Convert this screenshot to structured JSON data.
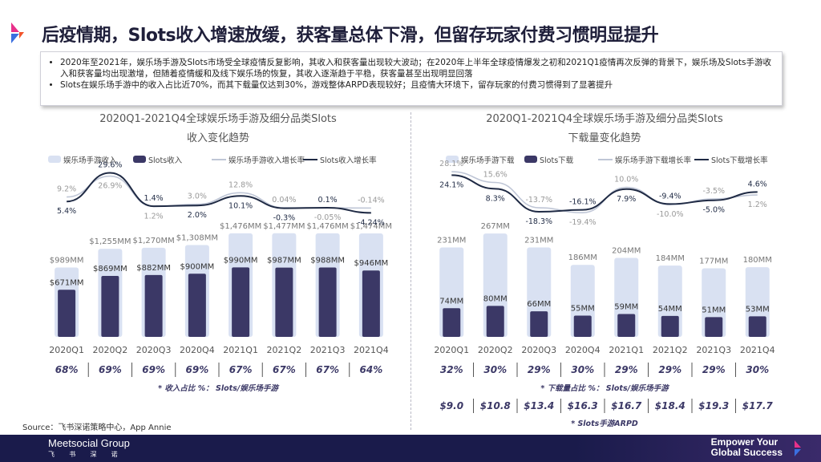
{
  "title": "后疫情期，Slots收入增速放缓，获客量总体下滑，但留存玩家付费习惯明显提升",
  "bullets": [
    "2020年至2021年，娱乐场手游及Slots市场受全球疫情反复影响，其收入和获客量出现较大波动；在2020年上半年全球疫情爆发之初和2021Q1疫情再次反弹的背景下，娱乐场及Slots手游收入和获客量均出现激增，但随着疫情缓和及线下娱乐场的恢复，其收入逐渐趋于平稳，获客量甚至出现明显回落",
    "Slots在娱乐场手游中的收入占比近70%，而其下载量仅达到30%，游戏整体ARPD表现较好；且疫情大环境下，留存玩家的付费习惯得到了显著提升"
  ],
  "source": "Source：飞书深诺策略中心，App Annie",
  "footer": {
    "brand": "Meetsocial Group",
    "brand_sub": "飞 书 深 诺",
    "slogan_line1": "Empower Your",
    "slogan_line2": "Global Success"
  },
  "colors": {
    "bar_light": "#d9e1f2",
    "bar_dark": "#3b3866",
    "line_light": "#bfc6d6",
    "line_dark": "#1f2a44",
    "title": "#1f1f3a"
  },
  "chart_data": [
    {
      "type": "bar",
      "title": "2020Q1-2021Q4全球娱乐场手游及细分品类Slots",
      "subtitle": "收入变化趋势",
      "categories": [
        "2020Q1",
        "2020Q2",
        "2020Q3",
        "2020Q4",
        "2021Q1",
        "2021Q2",
        "2021Q3",
        "2021Q4"
      ],
      "series": [
        {
          "name": "娱乐场手游收入",
          "kind": "bar",
          "values": [
            989,
            1255,
            1270,
            1308,
            1476,
            1477,
            1476,
            1474
          ],
          "labels": [
            "$989MM",
            "$1,255MM",
            "$1,270MM",
            "$1,308MM",
            "$1,476MM",
            "$1,477MM",
            "$1,476MM",
            "$1,474MM"
          ]
        },
        {
          "name": "Slots收入",
          "kind": "bar",
          "values": [
            671,
            869,
            882,
            900,
            990,
            987,
            988,
            946
          ],
          "labels": [
            "$671MM",
            "$869MM",
            "$882MM",
            "$900MM",
            "$990MM",
            "$987MM",
            "$988MM",
            "$946MM"
          ]
        },
        {
          "name": "娱乐场手游收入增长率",
          "kind": "line",
          "values": [
            9.2,
            26.9,
            1.2,
            3.0,
            12.8,
            0.04,
            -0.05,
            -0.14
          ],
          "labels": [
            "9.2%",
            "26.9%",
            "1.2%",
            "3.0%",
            "12.8%",
            "0.04%",
            "-0.05%",
            "-0.14%"
          ]
        },
        {
          "name": "Slots收入增长率",
          "kind": "line",
          "values": [
            5.4,
            29.6,
            1.4,
            2.0,
            10.1,
            -0.3,
            0.1,
            -4.24
          ],
          "labels": [
            "5.4%",
            "29.6%",
            "1.4%",
            "2.0%",
            "10.1%",
            "-0.3%",
            "0.1%",
            "-4.24%"
          ]
        }
      ],
      "share_values": [
        "68%",
        "69%",
        "69%",
        "69%",
        "67%",
        "67%",
        "67%",
        "64%"
      ],
      "share_note": "* 收入占比 %： Slots/娱乐场手游"
    },
    {
      "type": "bar",
      "title": "2020Q1-2021Q4全球娱乐场手游及细分品类Slots",
      "subtitle": "下载量变化趋势",
      "categories": [
        "2020Q1",
        "2020Q2",
        "2020Q3",
        "2020Q4",
        "2021Q1",
        "2021Q2",
        "2021Q3",
        "2021Q4"
      ],
      "series": [
        {
          "name": "娱乐场手游下载",
          "kind": "bar",
          "values": [
            231,
            267,
            231,
            186,
            204,
            184,
            177,
            180
          ],
          "labels": [
            "231MM",
            "267MM",
            "231MM",
            "186MM",
            "204MM",
            "184MM",
            "177MM",
            "180MM"
          ]
        },
        {
          "name": "Slots下载",
          "kind": "bar",
          "values": [
            74,
            80,
            66,
            55,
            59,
            54,
            51,
            53
          ],
          "labels": [
            "74MM",
            "80MM",
            "66MM",
            "55MM",
            "59MM",
            "54MM",
            "51MM",
            "53MM"
          ]
        },
        {
          "name": "娱乐场手游下载增长率",
          "kind": "line",
          "values": [
            28.1,
            15.6,
            -13.7,
            -19.4,
            10.0,
            -10.0,
            -3.5,
            1.2
          ],
          "labels": [
            "28.1%",
            "15.6%",
            "-13.7%",
            "-19.4%",
            "10.0%",
            "-10.0%",
            "-3.5%",
            "1.2%"
          ]
        },
        {
          "name": "Slots下载增长率",
          "kind": "line",
          "values": [
            24.1,
            8.3,
            -18.3,
            -16.1,
            7.9,
            -9.4,
            -5.0,
            4.6
          ],
          "labels": [
            "24.1%",
            "8.3%",
            "-18.3%",
            "-16.1%",
            "7.9%",
            "-9.4%",
            "-5.0%",
            "4.6%"
          ]
        }
      ],
      "share_values": [
        "32%",
        "30%",
        "29%",
        "30%",
        "29%",
        "29%",
        "29%",
        "30%"
      ],
      "share_note": "* 下载量占比 %： Slots/娱乐场手游",
      "arpd_values": [
        "$9.0",
        "$10.8",
        "$13.4",
        "$16.3",
        "$16.7",
        "$18.4",
        "$19.3",
        "$17.7"
      ],
      "arpd_note": "* Slots手游ARPD"
    }
  ]
}
